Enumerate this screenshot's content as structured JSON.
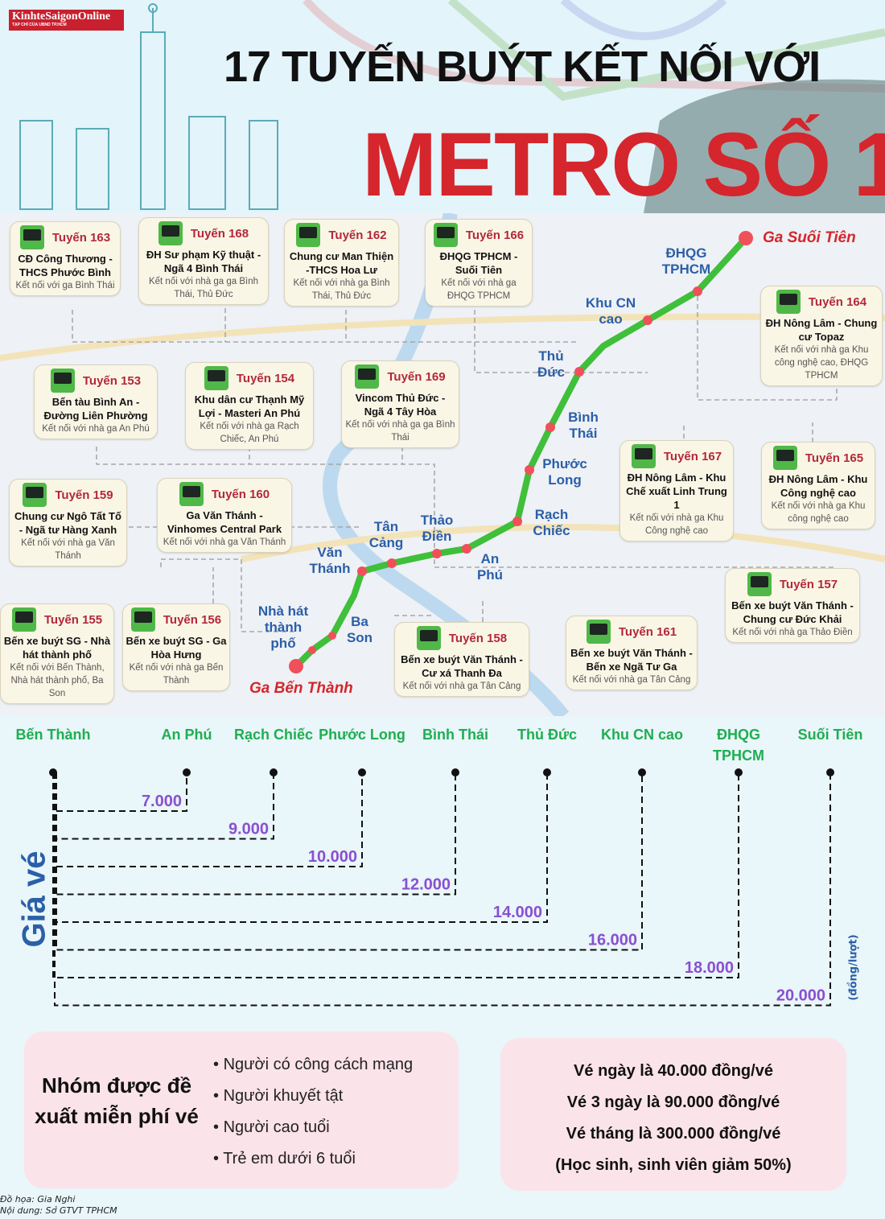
{
  "logo": {
    "name": "KinhteSaigonOnline",
    "tagline": "TẠP CHÍ CỦA UBND TP.HCM"
  },
  "title": {
    "line1": "17 TUYẾN BUÝT KẾT NỐI VỚI",
    "line2": "METRO SỐ 1"
  },
  "colors": {
    "title_red": "#d4262c",
    "route_red": "#b3283a",
    "station_blue": "#2b5fa8",
    "line_green": "#3fbf3a",
    "station_dot": "#f0505a",
    "fare_purple": "#8a4fd1",
    "fare_station_green": "#1fae50"
  },
  "map": {
    "terminals": {
      "start": "Ga Bến Thành",
      "end": "Ga Suối Tiên"
    },
    "stations": [
      "Nhà hát thành phố",
      "Ba Son",
      "Văn Thánh",
      "Tân Cảng",
      "Thảo Điền",
      "An Phú",
      "Rạch Chiếc",
      "Phước Long",
      "Bình Thái",
      "Thủ Đức",
      "Khu CN cao",
      "ĐHQG TPHCM"
    ],
    "routes": [
      {
        "route": "Tuyến 163",
        "name": "CĐ Công Thương - THCS Phước Bình",
        "connect": "Kết nối với ga Bình Thái"
      },
      {
        "route": "Tuyến 168",
        "name": "ĐH Sư phạm Kỹ thuật - Ngã 4 Bình Thái",
        "connect": "Kết nối với nhà ga ga Bình Thái, Thủ Đức"
      },
      {
        "route": "Tuyến 162",
        "name": "Chung cư Man Thiện -THCS Hoa Lư",
        "connect": "Kết nối với nhà ga Bình Thái, Thủ Đức"
      },
      {
        "route": "Tuyến 166",
        "name": "ĐHQG TPHCM - Suối Tiên",
        "connect": "Kết nối với nhà ga ĐHQG TPHCM"
      },
      {
        "route": "Tuyến 164",
        "name": "ĐH Nông Lâm - Chung cư Topaz",
        "connect": "Kết nối với nhà ga Khu công nghệ cao, ĐHQG TPHCM"
      },
      {
        "route": "Tuyến 153",
        "name": "Bến tàu Bình An - Đường Liên Phường",
        "connect": "Kết nối với nhà ga An Phú"
      },
      {
        "route": "Tuyến 154",
        "name": "Khu dân cư Thạnh Mỹ Lợi - Masteri An Phú",
        "connect": "Kết nối với nhà ga Rạch Chiếc, An Phú"
      },
      {
        "route": "Tuyến 169",
        "name": "Vincom Thủ Đức - Ngã 4 Tây Hòa",
        "connect": "Kết nối với nhà ga ga Bình Thái"
      },
      {
        "route": "Tuyến 159",
        "name": "Chung cư Ngô Tất Tố - Ngã tư Hàng Xanh",
        "connect": "Kết nối với nhà ga Văn Thánh"
      },
      {
        "route": "Tuyến 160",
        "name": "Ga Văn Thánh - Vinhomes Central Park",
        "connect": "Kết nối với nhà ga Văn Thánh"
      },
      {
        "route": "Tuyến 167",
        "name": "ĐH Nông Lâm - Khu Chế xuất Linh Trung 1",
        "connect": "Kết nối với nhà ga Khu Công nghệ cao"
      },
      {
        "route": "Tuyến 165",
        "name": "ĐH Nông Lâm - Khu Công nghệ cao",
        "connect": "Kết nối với nhà ga Khu công nghệ cao"
      },
      {
        "route": "Tuyến 155",
        "name": "Bến xe buýt SG - Nhà hát thành phố",
        "connect": "Kết nối với Bến Thành, Nhà hát thành phố, Ba Son"
      },
      {
        "route": "Tuyến 156",
        "name": "Bến xe buýt SG - Ga Hòa Hưng",
        "connect": "Kết nối với nhà ga Bến Thành"
      },
      {
        "route": "Tuyến 157",
        "name": "Bến xe buýt Văn Thánh - Chung cư Đức Khải",
        "connect": "Kết nối với nhà ga Thảo Điền"
      },
      {
        "route": "Tuyến 158",
        "name": "Bến xe buýt Văn Thánh - Cư xá Thanh Đa",
        "connect": "Kết nối với nhà ga Tân Cảng"
      },
      {
        "route": "Tuyến 161",
        "name": "Bến xe buýt Văn Thánh - Bến xe Ngã Tư Ga",
        "connect": "Kết nối với nhà ga Tân Cảng"
      }
    ]
  },
  "fares": {
    "label": "Giá vé",
    "unit": "(đồng/lượt)",
    "stations": [
      "Bến Thành",
      "An Phú",
      "Rạch Chiếc",
      "Phước Long",
      "Bình Thái",
      "Thủ Đức",
      "Khu CN cao",
      "ĐHQG TPHCM",
      "Suối Tiên"
    ],
    "prices": [
      "7.000",
      "9.000",
      "10.000",
      "12.000",
      "14.000",
      "16.000",
      "18.000",
      "20.000"
    ]
  },
  "free_group": {
    "title": "Nhóm được đề xuất miễn phí vé",
    "items": [
      "Người có công cách mạng",
      "Người khuyết tật",
      "Người cao tuổi",
      "Trẻ em dưới 6 tuổi"
    ]
  },
  "tickets": [
    "Vé ngày là 40.000 đồng/vé",
    "Vé 3 ngày là 90.000 đồng/vé",
    "Vé tháng là 300.000 đồng/vé",
    "(Học sinh, sinh viên giảm 50%)"
  ],
  "credits": [
    "Đồ họa: Gia Nghi",
    "Nội dung: Sở GTVT TPHCM"
  ]
}
